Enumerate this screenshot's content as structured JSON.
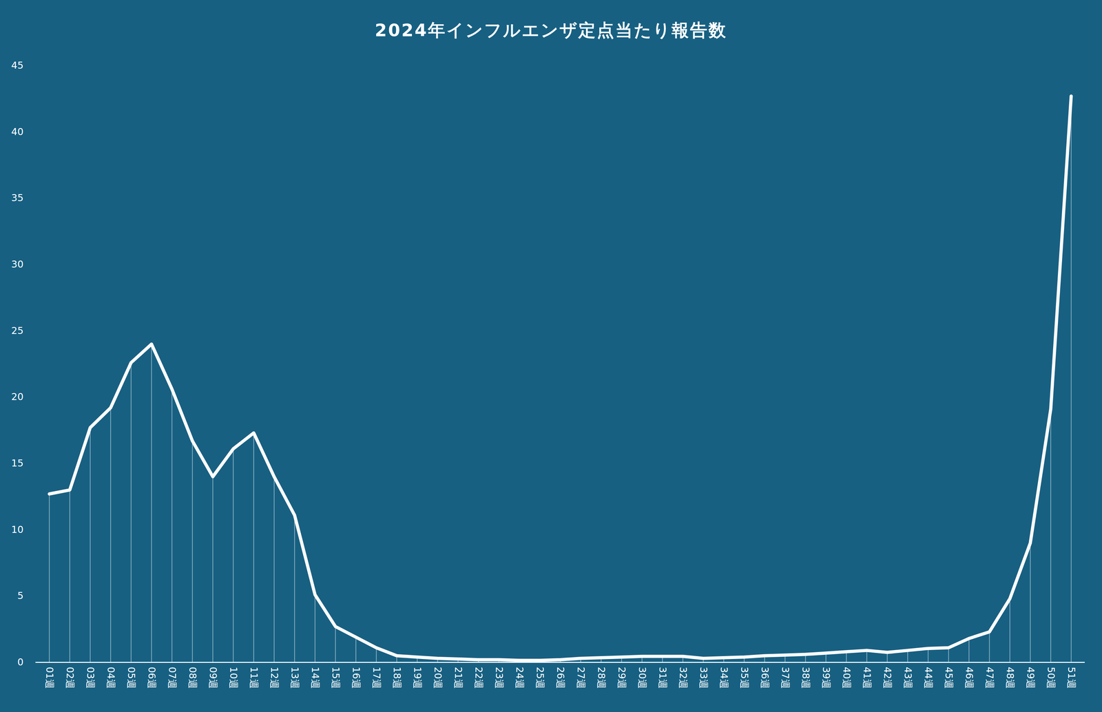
{
  "chart_data": {
    "type": "line",
    "title": "2024年インフルエンザ定点当たり報告数",
    "categories": [
      "01週",
      "02週",
      "03週",
      "04週",
      "05週",
      "06週",
      "07週",
      "08週",
      "09週",
      "10週",
      "11週",
      "12週",
      "13週",
      "14週",
      "15週",
      "16週",
      "17週",
      "18週",
      "19週",
      "20週",
      "21週",
      "22週",
      "23週",
      "24週",
      "25週",
      "26週",
      "27週",
      "28週",
      "29週",
      "30週",
      "31週",
      "32週",
      "33週",
      "34週",
      "35週",
      "36週",
      "37週",
      "38週",
      "39週",
      "40週",
      "41週",
      "42週",
      "43週",
      "44週",
      "45週",
      "46週",
      "47週",
      "48週",
      "49週",
      "50週",
      "51週"
    ],
    "values": [
      12.7,
      13.0,
      17.7,
      19.2,
      22.6,
      24.0,
      20.6,
      16.7,
      14.0,
      16.1,
      17.3,
      14.0,
      11.1,
      5.1,
      2.7,
      1.9,
      1.1,
      0.5,
      0.4,
      0.3,
      0.25,
      0.2,
      0.2,
      0.15,
      0.15,
      0.2,
      0.3,
      0.35,
      0.4,
      0.45,
      0.45,
      0.45,
      0.3,
      0.35,
      0.4,
      0.5,
      0.55,
      0.6,
      0.7,
      0.8,
      0.9,
      0.75,
      0.9,
      1.05,
      1.1,
      1.8,
      2.3,
      4.8,
      9.0,
      19.1,
      42.7
    ],
    "color": "#ffffff",
    "ylim": [
      0,
      45
    ],
    "yticks": [
      0,
      5,
      10,
      15,
      20,
      25,
      30,
      35,
      40,
      45
    ],
    "grid": false
  }
}
